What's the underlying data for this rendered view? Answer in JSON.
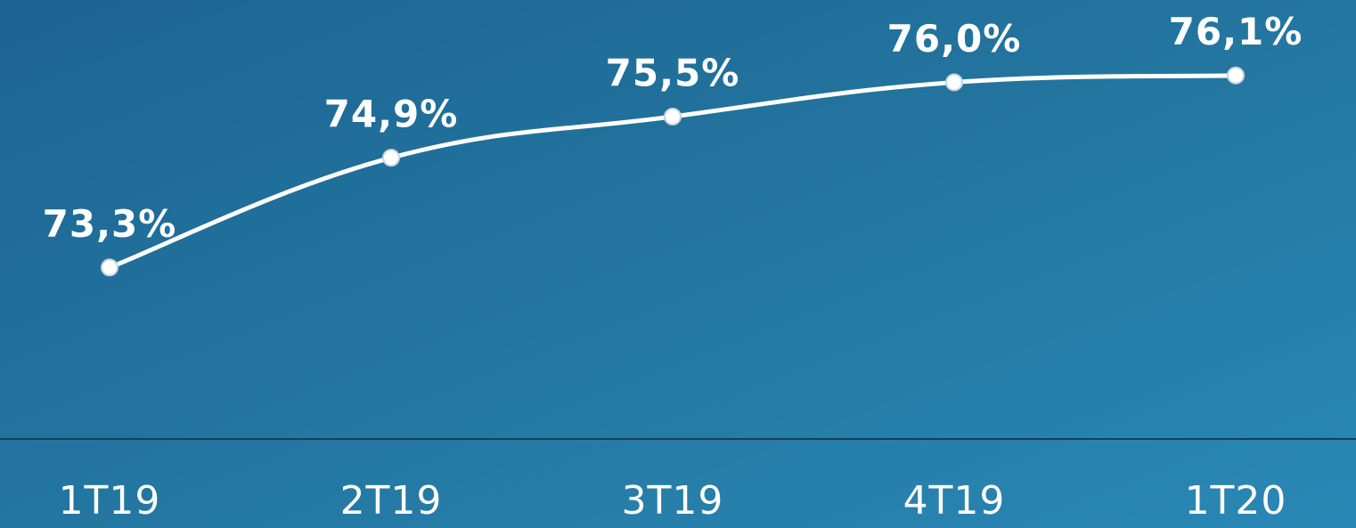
{
  "chart_data": {
    "type": "line",
    "categories": [
      "1T19",
      "2T19",
      "3T19",
      "4T19",
      "1T20"
    ],
    "values": [
      73.3,
      74.9,
      75.5,
      76.0,
      76.1
    ],
    "value_labels": [
      "73,3%",
      "74,9%",
      "75,5%",
      "76,0%",
      "76,1%"
    ],
    "color": "#ffffff",
    "ylim": [
      70.8,
      77.2
    ]
  }
}
